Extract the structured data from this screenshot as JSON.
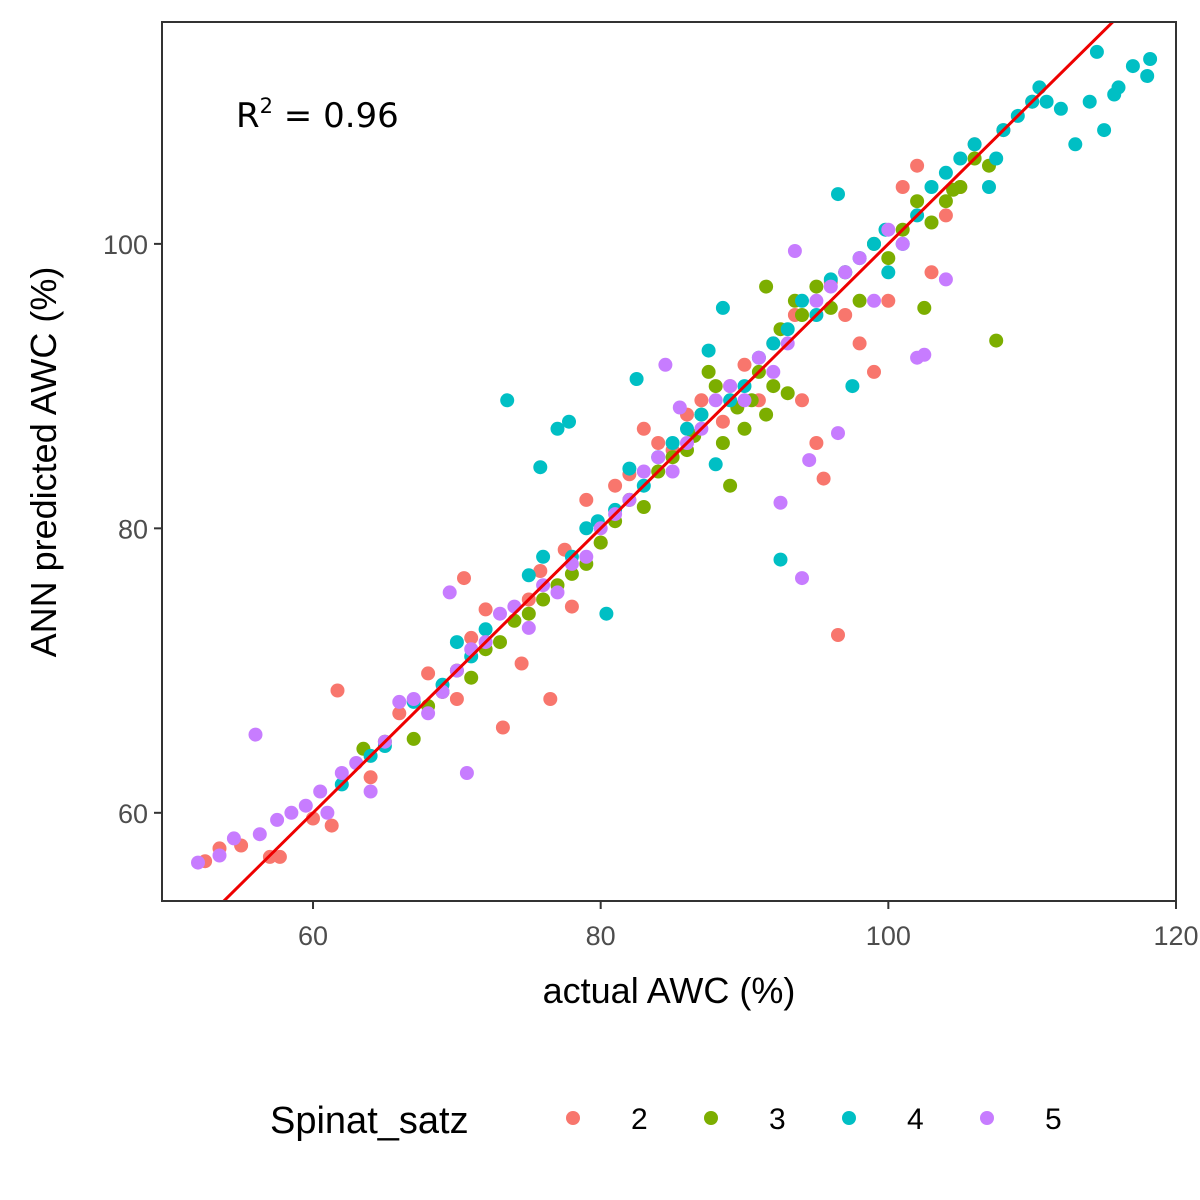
{
  "chart_data": {
    "type": "scatter",
    "title": "",
    "xlabel": "actual AWC (%)",
    "ylabel": "ANN predicted AWC (%)",
    "xlim": [
      49.5,
      120
    ],
    "ylim": [
      53.8,
      115.6
    ],
    "x_ticks": [
      60,
      80,
      100,
      120
    ],
    "y_ticks": [
      60,
      80,
      100
    ],
    "grid": false,
    "legend": {
      "title": "Spinat_satz",
      "placement": "bottom"
    },
    "annotation": {
      "base": "R",
      "superscript": "2",
      "text": " = 0.96"
    },
    "reference_line": {
      "type": "identity",
      "slope": 1,
      "intercept": 0,
      "color": "#ee0000"
    },
    "series": [
      {
        "name": "2",
        "color": "#F8766D",
        "points": [
          [
            52.5,
            56.6
          ],
          [
            53.5,
            57.5
          ],
          [
            55,
            57.7
          ],
          [
            57,
            56.9
          ],
          [
            57.7,
            56.9
          ],
          [
            60,
            59.6
          ],
          [
            61.3,
            59.1
          ],
          [
            61.7,
            68.6
          ],
          [
            64,
            62.5
          ],
          [
            66,
            67
          ],
          [
            68,
            69.8
          ],
          [
            70,
            68
          ],
          [
            70.5,
            76.5
          ],
          [
            71,
            72.3
          ],
          [
            72,
            74.3
          ],
          [
            73.2,
            66
          ],
          [
            74.5,
            70.5
          ],
          [
            75,
            75
          ],
          [
            75.8,
            77
          ],
          [
            76.5,
            68
          ],
          [
            77.5,
            78.5
          ],
          [
            78,
            74.5
          ],
          [
            79,
            82
          ],
          [
            80,
            79
          ],
          [
            81,
            83
          ],
          [
            82,
            83.8
          ],
          [
            83,
            87
          ],
          [
            84,
            86
          ],
          [
            85,
            85.5
          ],
          [
            86,
            88
          ],
          [
            87,
            89
          ],
          [
            88.5,
            87.5
          ],
          [
            89,
            90
          ],
          [
            90,
            91.5
          ],
          [
            91,
            89
          ],
          [
            92,
            93
          ],
          [
            93.5,
            95
          ],
          [
            94,
            89
          ],
          [
            95,
            86
          ],
          [
            95.5,
            83.5
          ],
          [
            96,
            97.3
          ],
          [
            96.5,
            72.5
          ],
          [
            97,
            95
          ],
          [
            98,
            93
          ],
          [
            99,
            91
          ],
          [
            100,
            96
          ],
          [
            101,
            104
          ],
          [
            102,
            105.5
          ],
          [
            103,
            98
          ],
          [
            104,
            102
          ],
          [
            105,
            104
          ],
          [
            106,
            107
          ],
          [
            108,
            108
          ],
          [
            110,
            110
          ]
        ]
      },
      {
        "name": "3",
        "color": "#7CAE00",
        "points": [
          [
            63.5,
            64.5
          ],
          [
            65,
            65
          ],
          [
            67,
            65.2
          ],
          [
            68,
            67.5
          ],
          [
            69,
            68.5
          ],
          [
            70,
            70
          ],
          [
            71,
            69.5
          ],
          [
            72,
            71.5
          ],
          [
            73,
            72
          ],
          [
            74,
            73.5
          ],
          [
            75,
            74
          ],
          [
            76,
            75
          ],
          [
            77,
            76
          ],
          [
            78,
            76.8
          ],
          [
            79,
            77.5
          ],
          [
            80,
            79
          ],
          [
            81,
            80.5
          ],
          [
            82,
            82
          ],
          [
            83,
            81.5
          ],
          [
            84,
            84
          ],
          [
            85,
            85
          ],
          [
            86,
            85.5
          ],
          [
            86.5,
            86.5
          ],
          [
            87,
            88
          ],
          [
            87.5,
            91
          ],
          [
            88,
            90
          ],
          [
            88.5,
            86
          ],
          [
            89,
            83
          ],
          [
            89.5,
            88.5
          ],
          [
            90,
            87
          ],
          [
            90.5,
            89
          ],
          [
            91,
            91
          ],
          [
            91.5,
            88
          ],
          [
            92,
            90
          ],
          [
            92.5,
            94
          ],
          [
            93,
            89.5
          ],
          [
            93.5,
            96
          ],
          [
            94,
            95
          ],
          [
            95,
            97
          ],
          [
            96,
            95.5
          ],
          [
            97,
            98
          ],
          [
            98,
            96
          ],
          [
            99,
            100
          ],
          [
            100,
            99
          ],
          [
            101,
            101
          ],
          [
            102,
            103
          ],
          [
            103,
            101.5
          ],
          [
            104,
            103
          ],
          [
            104.5,
            103.8
          ],
          [
            105,
            104
          ],
          [
            106,
            106
          ],
          [
            107,
            105.5
          ],
          [
            107.5,
            93.2
          ],
          [
            102.5,
            95.5
          ],
          [
            91.5,
            97
          ]
        ]
      },
      {
        "name": "4",
        "color": "#00BFC4",
        "points": [
          [
            62,
            62
          ],
          [
            64,
            64
          ],
          [
            65,
            64.7
          ],
          [
            67,
            67.8
          ],
          [
            69,
            69
          ],
          [
            70,
            72
          ],
          [
            71,
            71
          ],
          [
            72,
            72.9
          ],
          [
            73.5,
            89
          ],
          [
            75,
            76.7
          ],
          [
            75.8,
            84.3
          ],
          [
            76,
            78
          ],
          [
            77,
            87
          ],
          [
            77.8,
            87.5
          ],
          [
            78,
            78
          ],
          [
            79,
            80
          ],
          [
            79.8,
            80.5
          ],
          [
            80.4,
            74
          ],
          [
            81,
            81.3
          ],
          [
            82,
            84.2
          ],
          [
            82.5,
            90.5
          ],
          [
            83,
            83
          ],
          [
            84,
            85
          ],
          [
            85,
            86
          ],
          [
            86,
            87
          ],
          [
            87,
            88
          ],
          [
            87.5,
            92.5
          ],
          [
            88,
            84.5
          ],
          [
            88.5,
            95.5
          ],
          [
            89,
            89
          ],
          [
            90,
            90
          ],
          [
            91,
            92
          ],
          [
            92,
            93
          ],
          [
            92.5,
            77.8
          ],
          [
            93,
            94
          ],
          [
            94,
            96
          ],
          [
            95,
            95
          ],
          [
            96,
            97.5
          ],
          [
            96.5,
            103.5
          ],
          [
            97,
            98
          ],
          [
            97.5,
            90
          ],
          [
            98,
            99
          ],
          [
            99,
            100
          ],
          [
            99.8,
            101
          ],
          [
            100,
            98
          ],
          [
            101,
            100
          ],
          [
            102,
            102
          ],
          [
            103,
            104
          ],
          [
            104,
            105
          ],
          [
            105,
            106
          ],
          [
            106,
            107
          ],
          [
            107,
            104
          ],
          [
            107.5,
            106
          ],
          [
            108,
            108
          ],
          [
            109,
            109
          ],
          [
            110,
            110
          ],
          [
            110.5,
            111
          ],
          [
            111,
            110
          ],
          [
            112,
            109.5
          ],
          [
            113,
            107
          ],
          [
            114,
            110
          ],
          [
            114.5,
            113.5
          ],
          [
            115,
            108
          ],
          [
            115.7,
            110.5
          ],
          [
            116,
            111
          ],
          [
            117,
            112.5
          ],
          [
            118,
            111.8
          ],
          [
            118.2,
            113
          ]
        ]
      },
      {
        "name": "5",
        "color": "#C77CFF",
        "points": [
          [
            52,
            56.5
          ],
          [
            53.5,
            57
          ],
          [
            54.5,
            58.2
          ],
          [
            56,
            65.5
          ],
          [
            56.3,
            58.5
          ],
          [
            57.5,
            59.5
          ],
          [
            58.5,
            60
          ],
          [
            59.5,
            60.5
          ],
          [
            60.5,
            61.5
          ],
          [
            61,
            60
          ],
          [
            62,
            62.8
          ],
          [
            63,
            63.5
          ],
          [
            64,
            61.5
          ],
          [
            65,
            65
          ],
          [
            66,
            67.8
          ],
          [
            67,
            68
          ],
          [
            68,
            67
          ],
          [
            69,
            68.5
          ],
          [
            69.5,
            75.5
          ],
          [
            70,
            70
          ],
          [
            70.7,
            62.8
          ],
          [
            71,
            71.5
          ],
          [
            72,
            72
          ],
          [
            73,
            74
          ],
          [
            74,
            74.5
          ],
          [
            75,
            73
          ],
          [
            76,
            76
          ],
          [
            77,
            75.5
          ],
          [
            78,
            77.5
          ],
          [
            79,
            78
          ],
          [
            80,
            80
          ],
          [
            81,
            81
          ],
          [
            82,
            82
          ],
          [
            83,
            84
          ],
          [
            84,
            85
          ],
          [
            84.5,
            91.5
          ],
          [
            85,
            84
          ],
          [
            85.5,
            88.5
          ],
          [
            86,
            86
          ],
          [
            87,
            87
          ],
          [
            88,
            89
          ],
          [
            89,
            90
          ],
          [
            90,
            89
          ],
          [
            91,
            92
          ],
          [
            92,
            91
          ],
          [
            92.5,
            81.8
          ],
          [
            93,
            93
          ],
          [
            93.5,
            99.5
          ],
          [
            94,
            76.5
          ],
          [
            94.5,
            84.8
          ],
          [
            95,
            96
          ],
          [
            96,
            97
          ],
          [
            96.5,
            86.7
          ],
          [
            97,
            98
          ],
          [
            98,
            99
          ],
          [
            99,
            96
          ],
          [
            100,
            101
          ],
          [
            101,
            100
          ],
          [
            102,
            92
          ],
          [
            102.5,
            92.2
          ],
          [
            104,
            97.5
          ]
        ]
      }
    ]
  }
}
